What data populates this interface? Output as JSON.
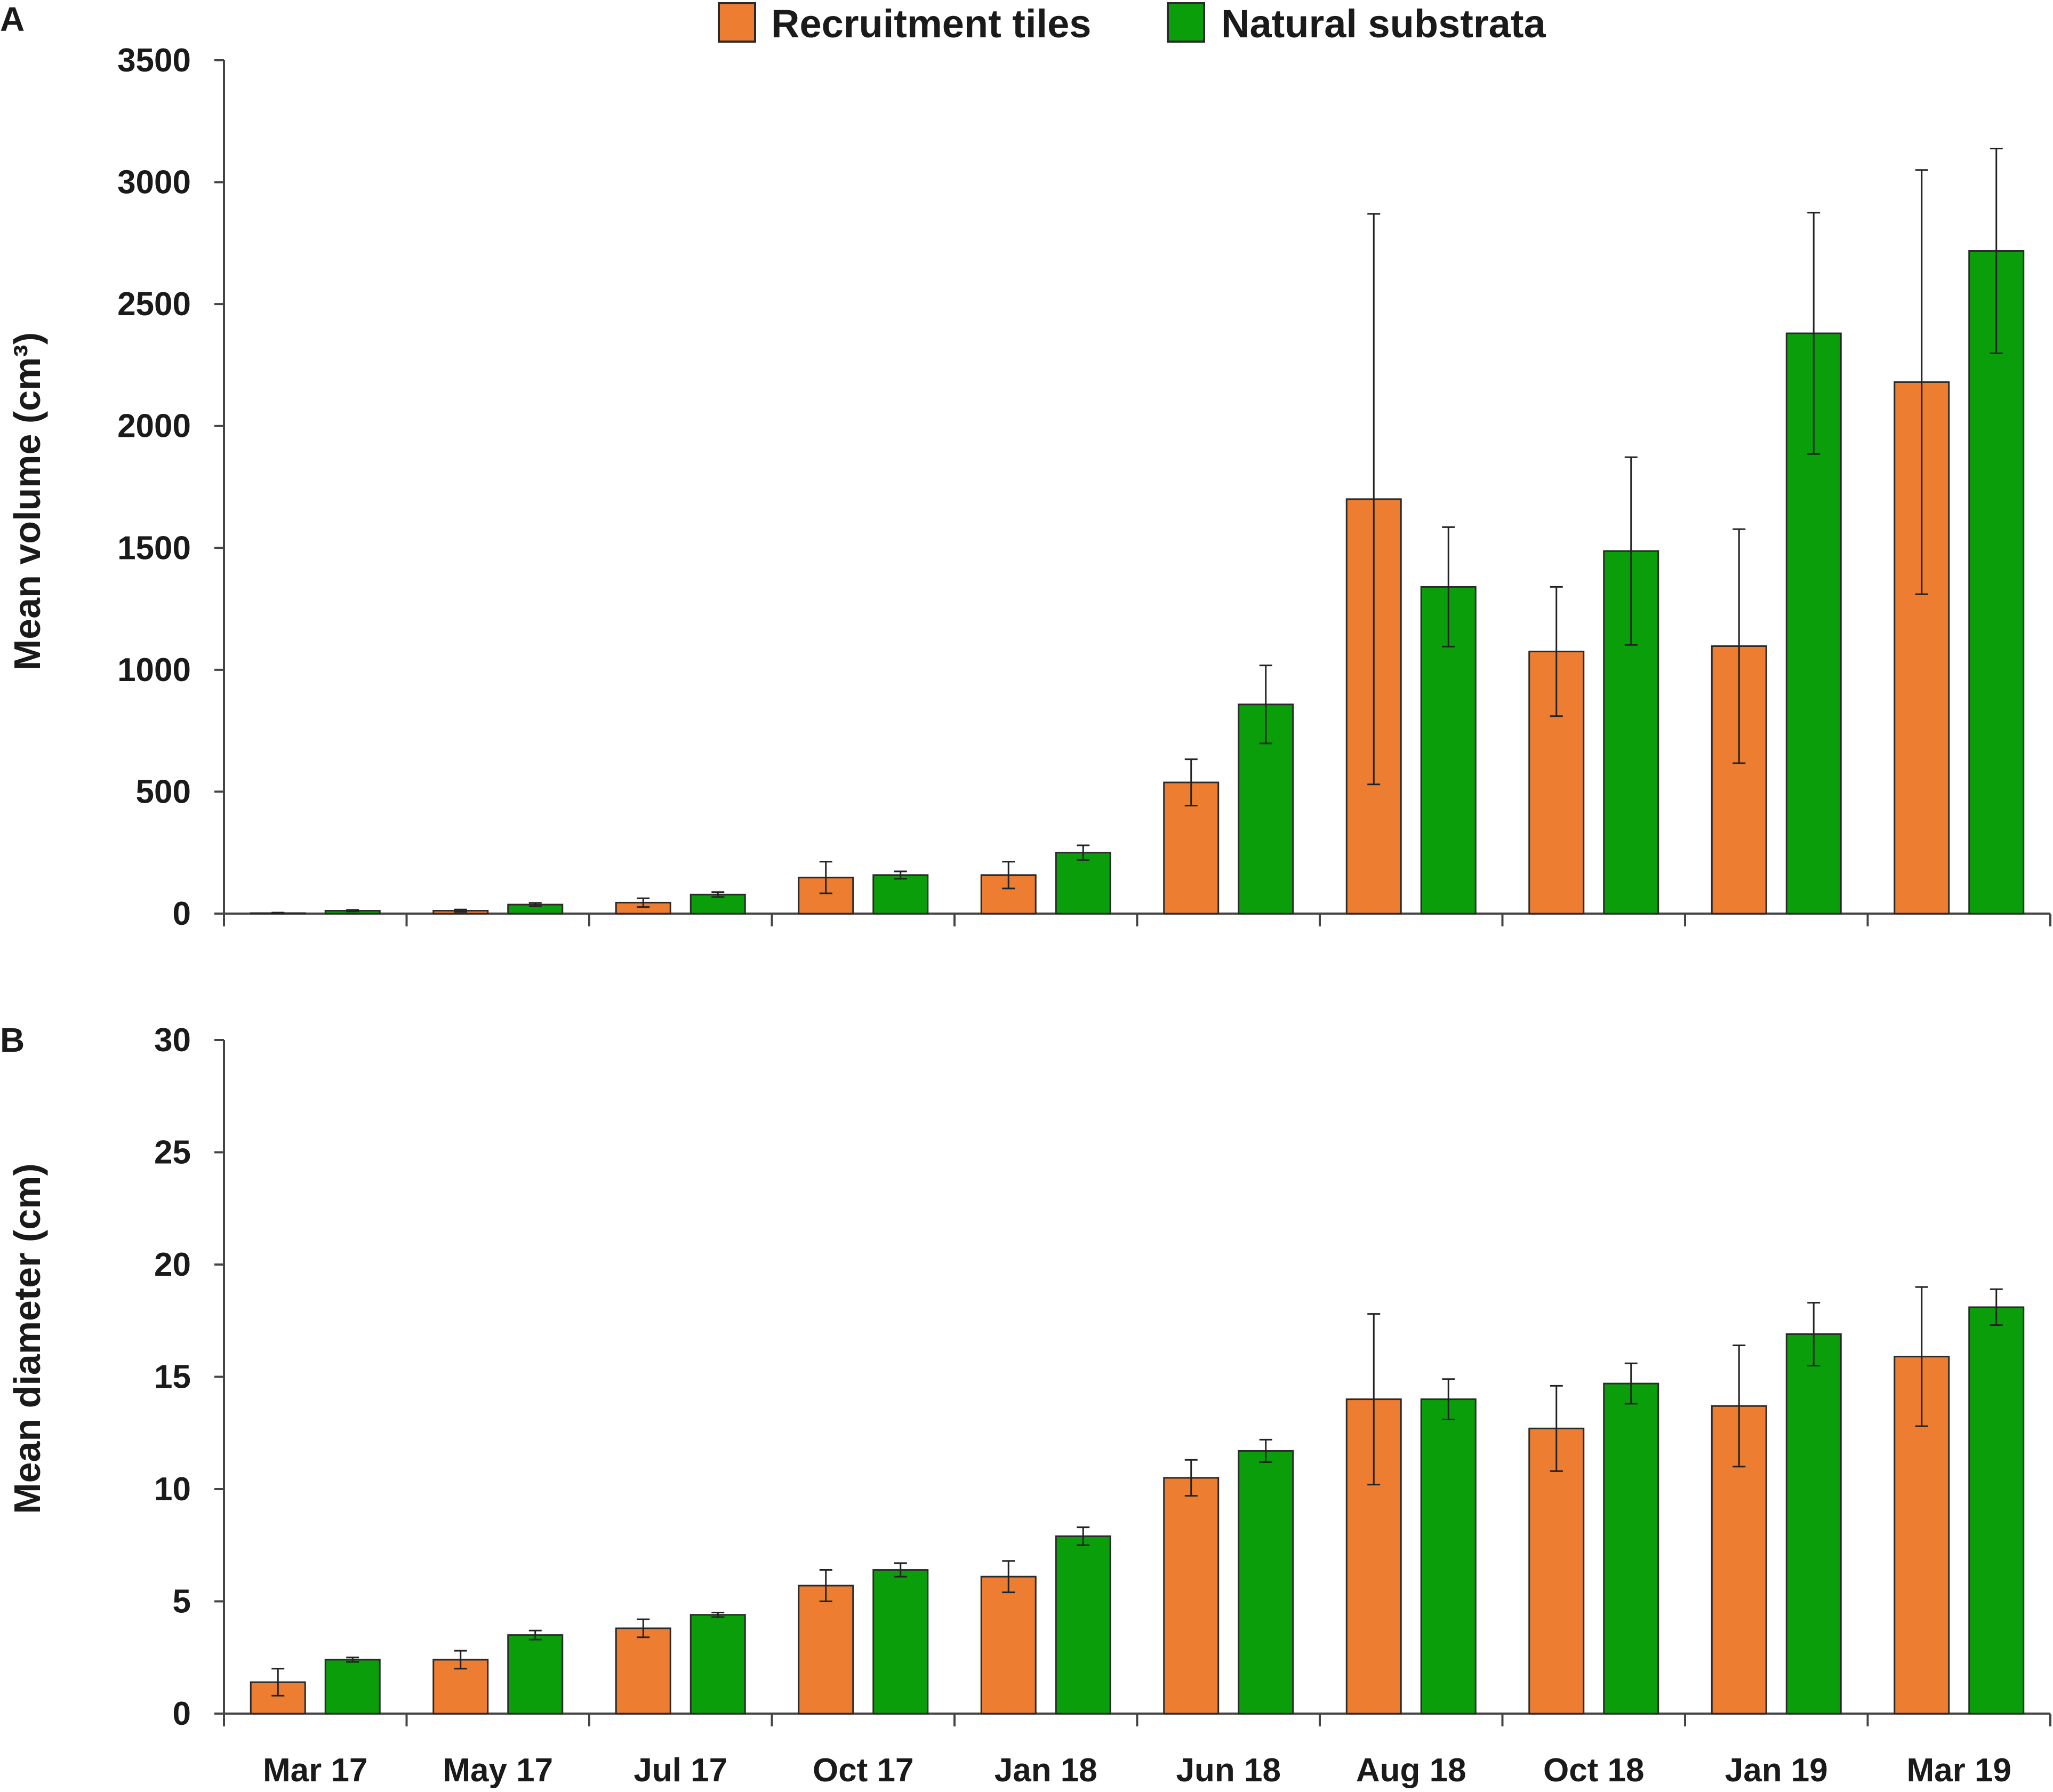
{
  "chart_data": [
    {
      "panel": "A",
      "type": "bar",
      "title": "",
      "ylabel": "Mean volume (cm³)",
      "xlabel": "",
      "ylim": [
        0,
        3500
      ],
      "yticks": [
        "0",
        "500",
        "1000",
        "1500",
        "2000",
        "2500",
        "3000",
        "3500"
      ],
      "categories": [
        "Mar 17",
        "May 17",
        "Jul 17",
        "Oct 17",
        "Jan 18",
        "Jun 18",
        "Aug 18",
        "Oct 18",
        "Jan 19",
        "Mar 19"
      ],
      "series": [
        {
          "name": "Recruitment tiles",
          "values": [
            2,
            12,
            45,
            148,
            158,
            538,
            1700,
            1075,
            1097,
            2180
          ],
          "error": [
            2,
            5,
            18,
            65,
            55,
            95,
            1170,
            265,
            480,
            870
          ]
        },
        {
          "name": "Natural substrata",
          "values": [
            12,
            37,
            78,
            158,
            250,
            858,
            1340,
            1487,
            2380,
            2718
          ],
          "error": [
            3,
            7,
            10,
            15,
            30,
            160,
            245,
            385,
            495,
            420
          ]
        }
      ]
    },
    {
      "panel": "B",
      "type": "bar",
      "title": "",
      "ylabel": "Mean diameter (cm)",
      "xlabel": "",
      "ylim": [
        0,
        30
      ],
      "yticks": [
        "0",
        "5",
        "10",
        "15",
        "20",
        "25",
        "30"
      ],
      "categories": [
        "Mar 17",
        "May 17",
        "Jul 17",
        "Oct 17",
        "Jan 18",
        "Jun 18",
        "Aug 18",
        "Oct 18",
        "Jan 19",
        "Mar 19"
      ],
      "series": [
        {
          "name": "Recruitment tiles",
          "values": [
            1.4,
            2.4,
            3.8,
            5.7,
            6.1,
            10.5,
            14.0,
            12.7,
            13.7,
            15.9
          ],
          "error": [
            0.6,
            0.4,
            0.4,
            0.7,
            0.7,
            0.8,
            3.8,
            1.9,
            2.7,
            3.1
          ]
        },
        {
          "name": "Natural substrata",
          "values": [
            2.4,
            3.5,
            4.4,
            6.4,
            7.9,
            11.7,
            14.0,
            14.7,
            16.9,
            18.1
          ],
          "error": [
            0.1,
            0.2,
            0.1,
            0.3,
            0.4,
            0.5,
            0.9,
            0.9,
            1.4,
            0.8
          ]
        }
      ]
    }
  ],
  "legend": {
    "items": [
      {
        "label": "Recruitment tiles",
        "color": "#ed7d31"
      },
      {
        "label": "Natural substrata",
        "color": "#0a9e0a"
      }
    ]
  },
  "colors": {
    "series": [
      "#ed7d31",
      "#0a9e0a"
    ],
    "bar_edge": "#2a2a2a",
    "axis": "#444444"
  }
}
